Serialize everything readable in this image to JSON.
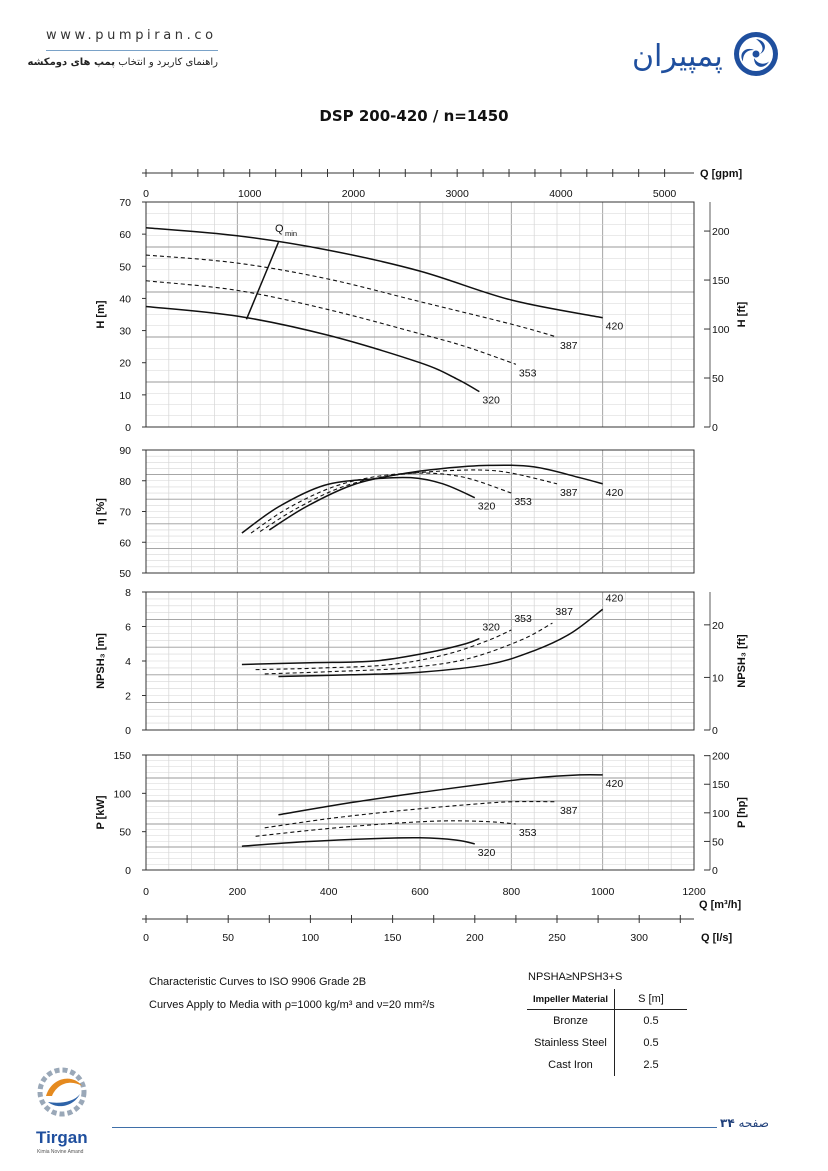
{
  "header": {
    "url": "www.pumpiran.co",
    "tagline_prefix": "راهنمای کاربرد و انتخاب",
    "tagline_bold": "پمپ های دومکشه",
    "brand_name": "پمپیران",
    "brand_color": "#1f4f9e"
  },
  "chart_data": {
    "title": "DSP 200-420 / n=1450",
    "type": "line",
    "x_axes": {
      "top": {
        "label": "Q [gpm]",
        "ticks": [
          "0",
          "1000",
          "2000",
          "3000",
          "4000",
          "5000"
        ]
      },
      "flow": {
        "label": "Q [m³/h]",
        "range": [
          0,
          1200
        ],
        "ticks": [
          "0",
          "200",
          "400",
          "600",
          "800",
          "1000",
          "1200"
        ]
      },
      "ls": {
        "label": "Q [l/s]",
        "ticks": [
          "0",
          "50",
          "100",
          "150",
          "200",
          "250",
          "300"
        ]
      }
    },
    "panels": [
      {
        "id": "head",
        "ylabel": "H [m]",
        "ylim": [
          0,
          70
        ],
        "yticks": [
          "0",
          "10",
          "20",
          "30",
          "40",
          "50",
          "60",
          "70"
        ],
        "y2label": "H [ft]",
        "y2ticks": [
          "0",
          "50",
          "100",
          "150",
          "200"
        ],
        "annotation": "Q",
        "annotation_sub": "min",
        "series": [
          {
            "name": "420",
            "dash": false,
            "x": [
              0,
              200,
              400,
              600,
              800,
              1000
            ],
            "y": [
              62,
              59.5,
              55,
              48.5,
              39.5,
              34
            ]
          },
          {
            "name": "387",
            "dash": true,
            "x": [
              0,
              200,
              400,
              600,
              800,
              900
            ],
            "y": [
              53.5,
              51,
              46,
              39,
              32,
              28
            ]
          },
          {
            "name": "353",
            "dash": true,
            "x": [
              0,
              200,
              400,
              600,
              700,
              810
            ],
            "y": [
              45.5,
              42.5,
              36.5,
              29,
              25,
              19.5
            ]
          },
          {
            "name": "320",
            "dash": false,
            "x": [
              0,
              200,
              400,
              600,
              680,
              730
            ],
            "y": [
              37.5,
              34.5,
              28.5,
              20,
              15,
              11
            ]
          },
          {
            "name": "",
            "dash": false,
            "x": [
              220,
              290
            ],
            "y": [
              33.5,
              57.5
            ]
          }
        ],
        "labels": [
          "420",
          "387",
          "353",
          "320"
        ]
      },
      {
        "id": "efficiency",
        "ylabel": "η [%]",
        "ylim": [
          50,
          90
        ],
        "yticks": [
          "50",
          "60",
          "70",
          "80",
          "90"
        ],
        "series": [
          {
            "name": "420",
            "dash": false,
            "x": [
              270,
              350,
              450,
              550,
              650,
              750,
              850,
              950,
              1000
            ],
            "y": [
              64,
              71.5,
              78.5,
              82,
              84,
              85,
              84.5,
              81,
              79
            ]
          },
          {
            "name": "387",
            "dash": true,
            "x": [
              250,
              330,
              430,
              530,
              630,
              730,
              800,
              900
            ],
            "y": [
              63.5,
              71,
              78,
              81.5,
              83,
              83.5,
              82.5,
              79
            ]
          },
          {
            "name": "353",
            "dash": true,
            "x": [
              230,
              310,
              410,
              510,
              610,
              700,
              800
            ],
            "y": [
              63,
              71,
              78,
              81.5,
              82.5,
              81,
              76
            ]
          },
          {
            "name": "320",
            "dash": false,
            "x": [
              210,
              290,
              390,
              490,
              580,
              650,
              720
            ],
            "y": [
              63,
              71.5,
              78.5,
              80.5,
              81,
              79,
              74.5
            ]
          }
        ],
        "labels": [
          "420",
          "387",
          "353",
          "320"
        ]
      },
      {
        "id": "npsh",
        "ylabel": "NPSH₃ [m]",
        "ylim": [
          0,
          8
        ],
        "yticks": [
          "0",
          "2",
          "4",
          "6",
          "8"
        ],
        "y2label": "NPSH₃ [ft]",
        "y2ticks": [
          "0",
          "10",
          "20"
        ],
        "series": [
          {
            "name": "420",
            "dash": false,
            "x": [
              290,
              450,
              600,
              750,
              850,
              930,
              1000
            ],
            "y": [
              3.1,
              3.2,
              3.35,
              3.8,
              4.6,
              5.6,
              7.0
            ]
          },
          {
            "name": "387",
            "dash": true,
            "x": [
              260,
              420,
              570,
              700,
              820,
              890
            ],
            "y": [
              3.25,
              3.4,
              3.6,
              4.1,
              5.2,
              6.2
            ]
          },
          {
            "name": "353",
            "dash": true,
            "x": [
              240,
              390,
              540,
              660,
              750,
              800
            ],
            "y": [
              3.5,
              3.6,
              3.8,
              4.4,
              5.2,
              5.8
            ]
          },
          {
            "name": "320",
            "dash": false,
            "x": [
              210,
              360,
              500,
              620,
              700,
              730
            ],
            "y": [
              3.8,
              3.9,
              4.0,
              4.5,
              5.0,
              5.3
            ]
          }
        ],
        "labels": [
          "420",
          "387",
          "353",
          "320"
        ]
      },
      {
        "id": "power",
        "ylabel": "P [kW]",
        "ylim": [
          0,
          150
        ],
        "yticks": [
          "0",
          "50",
          "100",
          "150"
        ],
        "y2label": "P [hp]",
        "y2ticks": [
          "0",
          "50",
          "100",
          "150",
          "200"
        ],
        "series": [
          {
            "name": "420",
            "dash": false,
            "x": [
              290,
              450,
              600,
              750,
              850,
              950,
              1000
            ],
            "y": [
              72,
              88,
              101,
              113,
              120,
              124,
              124
            ]
          },
          {
            "name": "387",
            "dash": true,
            "x": [
              260,
              400,
              550,
              700,
              800,
              900
            ],
            "y": [
              55,
              67,
              77,
              85,
              89,
              89
            ]
          },
          {
            "name": "353",
            "dash": true,
            "x": [
              240,
              380,
              520,
              650,
              750,
              810
            ],
            "y": [
              44,
              53,
              60,
              64,
              63,
              60
            ]
          },
          {
            "name": "320",
            "dash": false,
            "x": [
              210,
              350,
              500,
              600,
              680,
              720
            ],
            "y": [
              31,
              37,
              41,
              42,
              39,
              34
            ]
          }
        ],
        "labels": [
          "420",
          "387",
          "353",
          "320"
        ]
      }
    ]
  },
  "notes": {
    "line1": "Characteristic Curves to ISO 9906 Grade 2B",
    "line2": "Curves Apply to Media with ρ=1000 kg/m³ and ν=20 mm²/s"
  },
  "npsh_equation": "NPSHA≥NPSH3+S",
  "material_table": {
    "header_material": "Impeller Material",
    "header_s": "S [m]",
    "rows": [
      {
        "material": "Bronze",
        "s": "0.5"
      },
      {
        "material": "Stainless Steel",
        "s": "0.5"
      },
      {
        "material": "Cast Iron",
        "s": "2.5"
      }
    ]
  },
  "footer": {
    "page_label": "صفحه",
    "page_number": "۳۴",
    "logo_text": "Tirgan",
    "logo_subtext": "Kimia Novine Amand"
  }
}
